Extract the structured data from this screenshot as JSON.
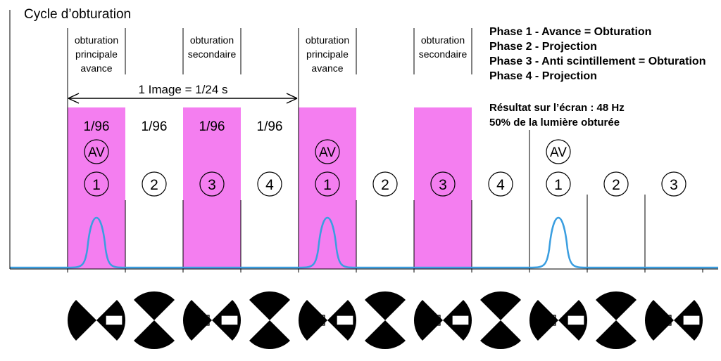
{
  "title": "Cycle d’obturation",
  "legend": [
    "Phase 1 - Avance = Obturation",
    "Phase 2 - Projection",
    "Phase 3 - Anti scintillement = Obturation",
    "Phase 4 - Projection"
  ],
  "result": [
    "Résultat sur l’écran : 48 Hz",
    "50% de la lumière obturée"
  ],
  "labels": [
    {
      "lines": [
        "obturation",
        "principale",
        "avance"
      ]
    },
    {
      "lines": [
        "obturation",
        "secondaire"
      ]
    },
    {
      "lines": [
        "obturation",
        "principale",
        "avance"
      ]
    },
    {
      "lines": [
        "obturation",
        "secondaire"
      ]
    }
  ],
  "image_arrow": "1 Image = 1/24 s",
  "fractions": [
    "1/96",
    "1/96",
    "1/96",
    "1/96"
  ],
  "av_label": "AV",
  "phases": [
    "1",
    "2",
    "3",
    "4",
    "1",
    "2",
    "3",
    "4",
    "1",
    "2",
    "3"
  ],
  "colors": {
    "shutter": "#f47ef0",
    "pulse": "#3a9ee0",
    "ink": "#000000"
  },
  "shutter_discs": [
    "horizontal",
    "vertical",
    "horizontal",
    "vertical",
    "horizontal",
    "vertical",
    "horizontal",
    "vertical",
    "horizontal",
    "vertical",
    "horizontal"
  ]
}
